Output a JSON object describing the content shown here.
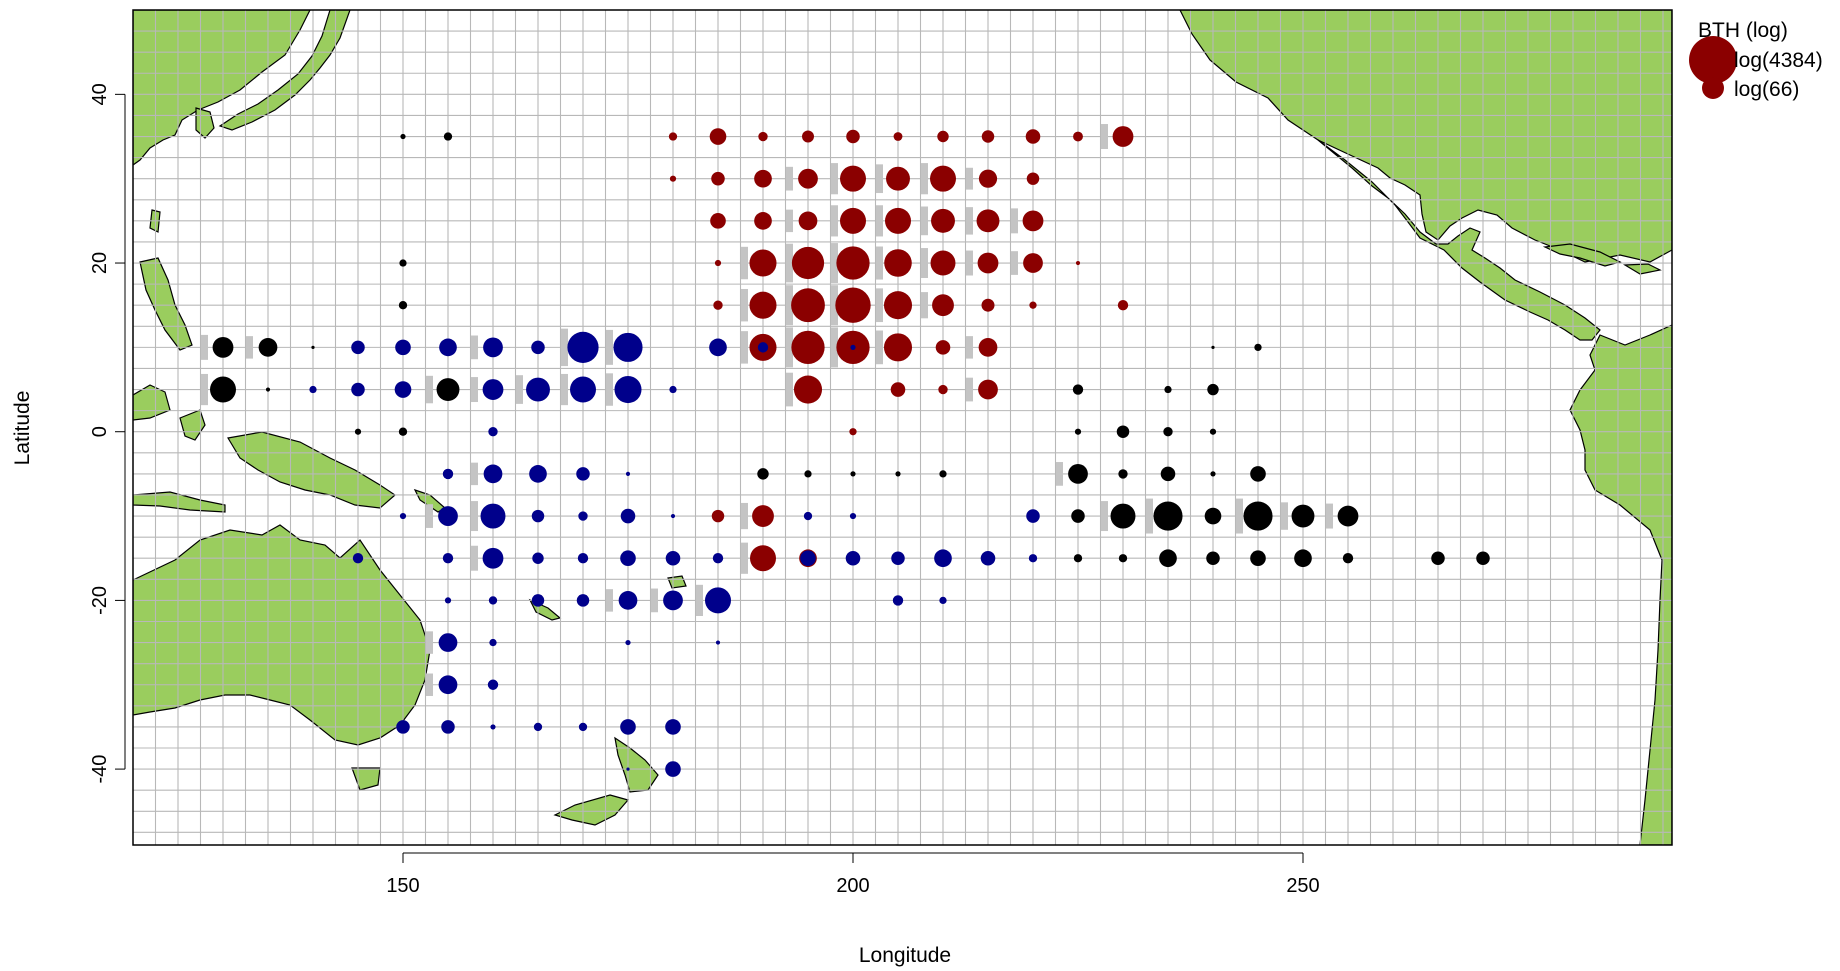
{
  "chart_data": {
    "type": "scatter",
    "subtype": "bubble map",
    "xlabel": "Longitude",
    "ylabel": "Latitude",
    "xlim": [
      120,
      291
    ],
    "ylim": [
      -49,
      50
    ],
    "x_ticks": [
      150,
      200,
      250
    ],
    "y_ticks": [
      -40,
      -20,
      0,
      20,
      40
    ],
    "grid": true,
    "grid_cell_degrees": 5,
    "land_color": "#9ACD5E",
    "bubble_scale": "log",
    "legend": {
      "title": "BTH (log)",
      "placement": "top-right",
      "entries": [
        {
          "label": "log(4384)",
          "value": 4384
        },
        {
          "label": "log(66)",
          "value": 66
        }
      ]
    },
    "series": [
      {
        "color": "#8B0000",
        "points": [
          [
            180,
            35,
            1.6
          ],
          [
            185,
            35,
            3.2
          ],
          [
            190,
            35,
            1.8
          ],
          [
            195,
            35,
            2.3
          ],
          [
            200,
            35,
            2.6
          ],
          [
            205,
            35,
            1.7
          ],
          [
            210,
            35,
            2.2
          ],
          [
            215,
            35,
            2.4
          ],
          [
            220,
            35,
            2.8
          ],
          [
            225,
            35,
            1.9
          ],
          [
            230,
            35,
            4.0
          ],
          [
            180,
            30,
            1.2
          ],
          [
            185,
            30,
            2.6
          ],
          [
            190,
            30,
            3.4
          ],
          [
            195,
            30,
            3.8
          ],
          [
            200,
            30,
            5.0
          ],
          [
            205,
            30,
            4.6
          ],
          [
            210,
            30,
            5.0
          ],
          [
            215,
            30,
            3.5
          ],
          [
            220,
            30,
            2.4
          ],
          [
            185,
            25,
            3.0
          ],
          [
            190,
            25,
            3.4
          ],
          [
            195,
            25,
            3.6
          ],
          [
            200,
            25,
            5.0
          ],
          [
            205,
            25,
            5.0
          ],
          [
            210,
            25,
            4.6
          ],
          [
            215,
            25,
            4.4
          ],
          [
            220,
            25,
            4.0
          ],
          [
            185,
            20,
            1.2
          ],
          [
            190,
            20,
            5.2
          ],
          [
            195,
            20,
            6.2
          ],
          [
            200,
            20,
            6.4
          ],
          [
            205,
            20,
            5.3
          ],
          [
            210,
            20,
            4.8
          ],
          [
            215,
            20,
            4.0
          ],
          [
            220,
            20,
            3.8
          ],
          [
            225,
            20,
            0.8
          ],
          [
            185,
            15,
            1.8
          ],
          [
            190,
            15,
            5.2
          ],
          [
            195,
            15,
            6.5
          ],
          [
            200,
            15,
            6.8
          ],
          [
            205,
            15,
            5.4
          ],
          [
            210,
            15,
            4.2
          ],
          [
            215,
            15,
            2.5
          ],
          [
            220,
            15,
            1.4
          ],
          [
            230,
            15,
            2.0
          ],
          [
            190,
            10,
            5.2
          ],
          [
            195,
            10,
            6.4
          ],
          [
            200,
            10,
            6.4
          ],
          [
            205,
            10,
            5.4
          ],
          [
            210,
            10,
            2.8
          ],
          [
            215,
            10,
            3.6
          ],
          [
            195,
            5,
            5.4
          ],
          [
            205,
            5,
            2.8
          ],
          [
            210,
            5,
            1.8
          ],
          [
            215,
            5,
            3.8
          ],
          [
            200,
            0,
            1.4
          ],
          [
            185,
            -10,
            2.4
          ],
          [
            190,
            -10,
            4.2
          ],
          [
            190,
            -15,
            5.0
          ],
          [
            195,
            -15,
            3.4
          ]
        ]
      },
      {
        "color": "#00008B",
        "points": [
          [
            140,
            5,
            1.4
          ],
          [
            145,
            10,
            2.6
          ],
          [
            145,
            5,
            2.6
          ],
          [
            150,
            10,
            3.0
          ],
          [
            150,
            5,
            3.2
          ],
          [
            155,
            10,
            3.4
          ],
          [
            160,
            10,
            3.8
          ],
          [
            160,
            5,
            4.0
          ],
          [
            165,
            10,
            2.6
          ],
          [
            165,
            5,
            4.6
          ],
          [
            170,
            10,
            6.0
          ],
          [
            170,
            5,
            5.0
          ],
          [
            175,
            10,
            5.6
          ],
          [
            175,
            5,
            5.2
          ],
          [
            180,
            5,
            1.4
          ],
          [
            185,
            10,
            3.4
          ],
          [
            190,
            10,
            2.0
          ],
          [
            200,
            10,
            1.0
          ],
          [
            160,
            0,
            1.8
          ],
          [
            155,
            -5,
            2.0
          ],
          [
            160,
            -5,
            3.6
          ],
          [
            165,
            -5,
            3.4
          ],
          [
            170,
            -5,
            2.6
          ],
          [
            175,
            -5,
            0.8
          ],
          [
            150,
            -10,
            1.2
          ],
          [
            155,
            -10,
            3.8
          ],
          [
            160,
            -10,
            4.8
          ],
          [
            165,
            -10,
            2.4
          ],
          [
            170,
            -10,
            1.8
          ],
          [
            175,
            -10,
            2.8
          ],
          [
            180,
            -10,
            0.8
          ],
          [
            195,
            -10,
            1.6
          ],
          [
            200,
            -10,
            1.2
          ],
          [
            220,
            -10,
            2.6
          ],
          [
            145,
            -15,
            2.0
          ],
          [
            155,
            -15,
            2.0
          ],
          [
            160,
            -15,
            4.0
          ],
          [
            165,
            -15,
            2.2
          ],
          [
            170,
            -15,
            2.0
          ],
          [
            175,
            -15,
            3.0
          ],
          [
            180,
            -15,
            2.8
          ],
          [
            185,
            -15,
            2.0
          ],
          [
            195,
            -15,
            3.0
          ],
          [
            200,
            -15,
            2.8
          ],
          [
            205,
            -15,
            2.6
          ],
          [
            210,
            -15,
            3.4
          ],
          [
            215,
            -15,
            2.8
          ],
          [
            220,
            -15,
            1.6
          ],
          [
            155,
            -20,
            1.2
          ],
          [
            160,
            -20,
            1.6
          ],
          [
            165,
            -20,
            2.4
          ],
          [
            170,
            -20,
            2.4
          ],
          [
            175,
            -20,
            3.6
          ],
          [
            180,
            -20,
            3.8
          ],
          [
            185,
            -20,
            5.0
          ],
          [
            205,
            -20,
            2.0
          ],
          [
            210,
            -20,
            1.4
          ],
          [
            155,
            -25,
            3.6
          ],
          [
            160,
            -25,
            1.4
          ],
          [
            175,
            -25,
            1.0
          ],
          [
            185,
            -25,
            0.8
          ],
          [
            155,
            -30,
            3.6
          ],
          [
            160,
            -30,
            2.0
          ],
          [
            150,
            -35,
            2.6
          ],
          [
            155,
            -35,
            2.6
          ],
          [
            160,
            -35,
            1.0
          ],
          [
            165,
            -35,
            1.6
          ],
          [
            170,
            -35,
            1.6
          ],
          [
            175,
            -35,
            3.0
          ],
          [
            180,
            -35,
            3.0
          ],
          [
            180,
            -40,
            3.0
          ],
          [
            175,
            -40,
            0.6
          ]
        ]
      },
      {
        "color": "#000000",
        "points": [
          [
            130,
            10,
            4.0
          ],
          [
            135,
            10,
            3.6
          ],
          [
            140,
            10,
            0.6
          ],
          [
            130,
            5,
            5.0
          ],
          [
            135,
            5,
            0.8
          ],
          [
            155,
            5,
            4.4
          ],
          [
            150,
            35,
            1.0
          ],
          [
            155,
            35,
            1.6
          ],
          [
            150,
            20,
            1.4
          ],
          [
            150,
            15,
            1.6
          ],
          [
            145,
            0,
            1.2
          ],
          [
            150,
            0,
            1.6
          ],
          [
            225,
            5,
            2.0
          ],
          [
            235,
            5,
            1.4
          ],
          [
            240,
            5,
            2.2
          ],
          [
            245,
            10,
            1.4
          ],
          [
            240,
            10,
            0.6
          ],
          [
            225,
            0,
            1.2
          ],
          [
            230,
            0,
            2.4
          ],
          [
            235,
            0,
            1.8
          ],
          [
            240,
            0,
            1.2
          ],
          [
            190,
            -5,
            2.2
          ],
          [
            195,
            -5,
            1.4
          ],
          [
            200,
            -5,
            1.0
          ],
          [
            205,
            -5,
            1.0
          ],
          [
            210,
            -5,
            1.4
          ],
          [
            225,
            -5,
            3.8
          ],
          [
            230,
            -5,
            1.8
          ],
          [
            235,
            -5,
            2.8
          ],
          [
            240,
            -5,
            1.0
          ],
          [
            245,
            -5,
            3.0
          ],
          [
            225,
            -10,
            2.6
          ],
          [
            230,
            -10,
            4.8
          ],
          [
            235,
            -10,
            5.6
          ],
          [
            240,
            -10,
            3.2
          ],
          [
            245,
            -10,
            5.6
          ],
          [
            250,
            -10,
            4.4
          ],
          [
            255,
            -10,
            4.0
          ],
          [
            225,
            -15,
            1.6
          ],
          [
            230,
            -15,
            1.6
          ],
          [
            235,
            -15,
            3.4
          ],
          [
            240,
            -15,
            2.6
          ],
          [
            245,
            -15,
            3.0
          ],
          [
            250,
            -15,
            3.4
          ],
          [
            255,
            -15,
            2.0
          ],
          [
            265,
            -15,
            2.6
          ],
          [
            270,
            -15,
            2.6
          ]
        ]
      }
    ]
  }
}
